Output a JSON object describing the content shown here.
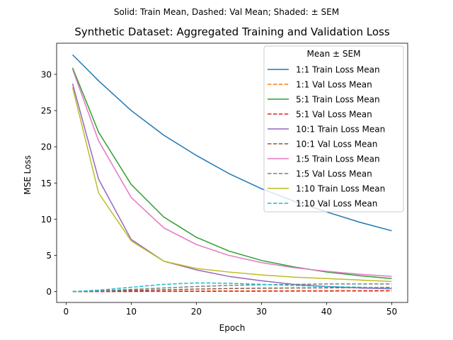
{
  "chart_data": {
    "type": "line",
    "suptitle": "Solid: Train Mean, Dashed: Val Mean; Shaded: ± SEM",
    "title": "Synthetic Dataset: Aggregated Training and Validation Loss",
    "xlabel": "Epoch",
    "ylabel": "MSE Loss",
    "xlim": [
      -1.45,
      52.45
    ],
    "ylim": [
      -1.5,
      34.3
    ],
    "xticks": [
      0,
      10,
      20,
      30,
      40,
      50
    ],
    "yticks": [
      0,
      5,
      10,
      15,
      20,
      25,
      30
    ],
    "grid": false,
    "legend": {
      "title": "Mean ± SEM",
      "placement": "upper right"
    },
    "x": [
      1,
      5,
      10,
      15,
      20,
      25,
      30,
      35,
      40,
      45,
      50
    ],
    "series": [
      {
        "name": "1:1 Train Loss Mean",
        "color": "#1f77b4",
        "style": "solid",
        "values": [
          32.7,
          29.1,
          25.0,
          21.6,
          18.8,
          16.3,
          14.2,
          12.5,
          11.0,
          9.6,
          8.4
        ]
      },
      {
        "name": "1:1 Val Loss Mean",
        "color": "#ff7f0e",
        "style": "dashed",
        "values": [
          0.0,
          0.02,
          0.04,
          0.06,
          0.08,
          0.09,
          0.1,
          0.11,
          0.12,
          0.13,
          0.14
        ]
      },
      {
        "name": "5:1 Train Loss Mean",
        "color": "#2ca02c",
        "style": "solid",
        "values": [
          30.9,
          22.0,
          14.8,
          10.3,
          7.5,
          5.6,
          4.3,
          3.4,
          2.7,
          2.2,
          1.8
        ]
      },
      {
        "name": "5:1 Val Loss Mean",
        "color": "#d62728",
        "style": "dashed",
        "values": [
          0.0,
          0.0,
          0.02,
          0.03,
          0.04,
          0.05,
          0.06,
          0.07,
          0.08,
          0.09,
          0.1
        ]
      },
      {
        "name": "10:1 Train Loss Mean",
        "color": "#9467bd",
        "style": "solid",
        "values": [
          28.7,
          15.5,
          7.2,
          4.2,
          3.0,
          2.1,
          1.5,
          1.0,
          0.7,
          0.5,
          0.4
        ]
      },
      {
        "name": "10:1 Val Loss Mean",
        "color": "#8c564b",
        "style": "dashed",
        "values": [
          0.0,
          0.05,
          0.15,
          0.25,
          0.35,
          0.42,
          0.47,
          0.5,
          0.52,
          0.55,
          0.58
        ]
      },
      {
        "name": "1:5 Train Loss Mean",
        "color": "#e377c2",
        "style": "solid",
        "values": [
          30.7,
          20.8,
          13.0,
          8.8,
          6.5,
          5.0,
          4.0,
          3.3,
          2.8,
          2.4,
          2.1
        ]
      },
      {
        "name": "1:5 Val Loss Mean",
        "color": "#7f7f7f",
        "style": "dashed",
        "values": [
          0.0,
          0.1,
          0.3,
          0.5,
          0.7,
          0.85,
          0.95,
          1.0,
          1.05,
          1.05,
          1.05
        ]
      },
      {
        "name": "1:10 Train Loss Mean",
        "color": "#bcbd22",
        "style": "solid",
        "values": [
          28.2,
          13.6,
          7.0,
          4.2,
          3.2,
          2.7,
          2.3,
          2.0,
          1.8,
          1.6,
          1.4
        ]
      },
      {
        "name": "1:10 Val Loss Mean",
        "color": "#17becf",
        "style": "dashed",
        "values": [
          0.0,
          0.2,
          0.6,
          1.0,
          1.2,
          1.15,
          1.0,
          0.85,
          0.7,
          0.6,
          0.5
        ]
      }
    ]
  }
}
